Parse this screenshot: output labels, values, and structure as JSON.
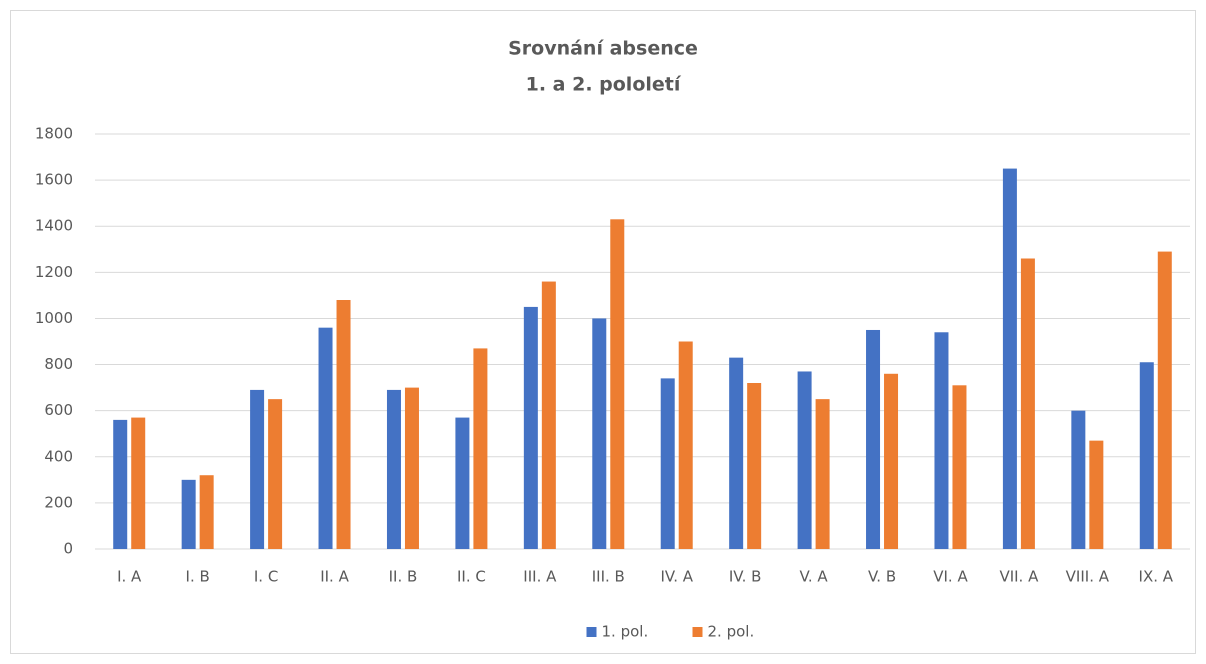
{
  "chart_data": {
    "type": "bar",
    "title": [
      "Srovnání absence",
      "1. a 2. pololetí"
    ],
    "categories": [
      "I. A",
      "I. B",
      "I. C",
      "II. A",
      "II. B",
      "II. C",
      "III. A",
      "III. B",
      "IV. A",
      "IV. B",
      "V. A",
      "V. B",
      "VI. A",
      "VII. A",
      "VIII. A",
      "IX. A"
    ],
    "series": [
      {
        "name": "1. pol.",
        "color": "#4472c4",
        "values": [
          560,
          300,
          690,
          960,
          690,
          570,
          1050,
          1000,
          740,
          830,
          770,
          950,
          940,
          1650,
          600,
          810
        ]
      },
      {
        "name": "2. pol.",
        "color": "#ed7d31",
        "values": [
          570,
          320,
          650,
          1080,
          700,
          870,
          1160,
          1430,
          900,
          720,
          650,
          760,
          710,
          1260,
          470,
          1290
        ]
      }
    ],
    "ylim": [
      0,
      1800
    ],
    "yticks": [
      0,
      200,
      400,
      600,
      800,
      1000,
      1200,
      1400,
      1600,
      1800
    ],
    "grid": true,
    "legend": "bottom"
  }
}
